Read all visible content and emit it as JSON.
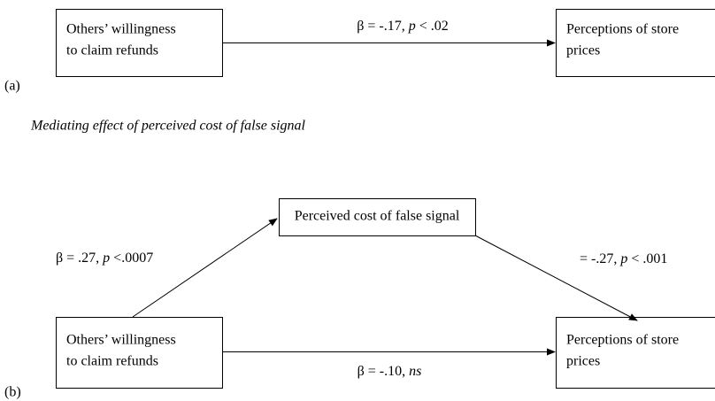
{
  "panel_a": {
    "tag": "(a)",
    "source": [
      "Others’ willingness",
      "to claim refunds"
    ],
    "target": [
      "Perceptions of store",
      "prices"
    ],
    "edge_label": [
      "β = -.17, ",
      "p",
      " < .02"
    ]
  },
  "heading": "Mediating effect of perceived cost of false signal",
  "panel_b": {
    "tag": "(b)",
    "source": [
      "Others’ willingness",
      "to claim refunds"
    ],
    "mediator": "Perceived cost of false signal",
    "target": [
      "Perceptions of store",
      "prices"
    ],
    "edge_source_mediator": [
      "β = .27, ",
      "p",
      " <.0007"
    ],
    "edge_mediator_target": [
      "= -.27, ",
      "p",
      " < .001"
    ],
    "edge_source_target": [
      "β = -.10, ",
      "ns"
    ]
  }
}
